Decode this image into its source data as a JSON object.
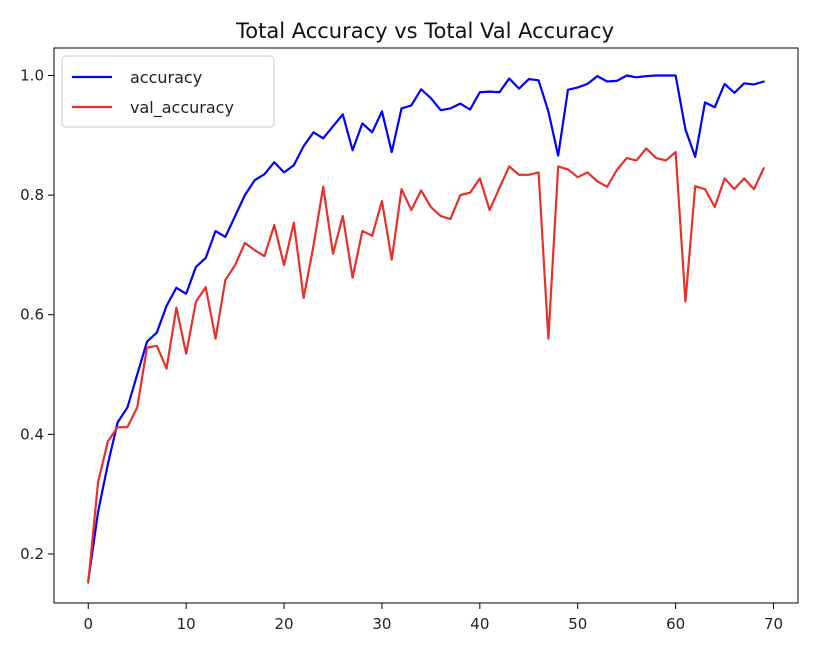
{
  "chart_data": {
    "type": "line",
    "title": "Total Accuracy vs Total Val Accuracy",
    "xlabel": "",
    "ylabel": "",
    "xlim": [
      -3.5,
      72.5
    ],
    "ylim": [
      0.118,
      1.046
    ],
    "xticks": [
      0,
      10,
      20,
      30,
      40,
      50,
      60,
      70
    ],
    "xtick_labels": [
      "0",
      "10",
      "20",
      "30",
      "40",
      "50",
      "60",
      "70"
    ],
    "yticks": [
      0.2,
      0.4,
      0.6,
      0.8,
      1.0
    ],
    "ytick_labels": [
      "0.2",
      "0.4",
      "0.6",
      "0.8",
      "1.0"
    ],
    "grid": false,
    "legend_position": "top-left",
    "x": [
      0,
      1,
      2,
      3,
      4,
      5,
      6,
      7,
      8,
      9,
      10,
      11,
      12,
      13,
      14,
      15,
      16,
      17,
      18,
      19,
      20,
      21,
      22,
      23,
      24,
      25,
      26,
      27,
      28,
      29,
      30,
      31,
      32,
      33,
      34,
      35,
      36,
      37,
      38,
      39,
      40,
      41,
      42,
      43,
      44,
      45,
      46,
      47,
      48,
      49,
      50,
      51,
      52,
      53,
      54,
      55,
      56,
      57,
      58,
      59,
      60,
      61,
      62,
      63,
      64,
      65,
      66,
      67,
      68,
      69
    ],
    "series": [
      {
        "name": "accuracy",
        "color": "#0000ff",
        "values": [
          0.155,
          0.27,
          0.35,
          0.42,
          0.445,
          0.5,
          0.555,
          0.57,
          0.615,
          0.645,
          0.635,
          0.68,
          0.695,
          0.74,
          0.73,
          0.765,
          0.8,
          0.825,
          0.835,
          0.855,
          0.838,
          0.85,
          0.882,
          0.905,
          0.895,
          0.915,
          0.935,
          0.875,
          0.92,
          0.905,
          0.94,
          0.872,
          0.945,
          0.95,
          0.977,
          0.962,
          0.942,
          0.945,
          0.953,
          0.943,
          0.972,
          0.973,
          0.972,
          0.995,
          0.978,
          0.994,
          0.992,
          0.94,
          0.866,
          0.976,
          0.98,
          0.986,
          0.999,
          0.99,
          0.991,
          1.0,
          0.997,
          0.999,
          1.0,
          1.0,
          1.0,
          0.91,
          0.864,
          0.955,
          0.947,
          0.986,
          0.971,
          0.987,
          0.985,
          0.99
        ]
      },
      {
        "name": "val_accuracy",
        "color": "#e8302a",
        "values": [
          0.152,
          0.32,
          0.388,
          0.412,
          0.412,
          0.445,
          0.545,
          0.548,
          0.51,
          0.612,
          0.535,
          0.622,
          0.646,
          0.56,
          0.658,
          0.683,
          0.72,
          0.708,
          0.698,
          0.75,
          0.683,
          0.754,
          0.628,
          0.715,
          0.814,
          0.702,
          0.765,
          0.662,
          0.74,
          0.732,
          0.79,
          0.692,
          0.81,
          0.775,
          0.808,
          0.78,
          0.765,
          0.76,
          0.8,
          0.804,
          0.828,
          0.775,
          0.812,
          0.848,
          0.834,
          0.834,
          0.838,
          0.56,
          0.848,
          0.843,
          0.83,
          0.838,
          0.823,
          0.814,
          0.842,
          0.862,
          0.858,
          0.878,
          0.862,
          0.858,
          0.872,
          0.622,
          0.815,
          0.81,
          0.78,
          0.828,
          0.81,
          0.828,
          0.81,
          0.845
        ]
      }
    ]
  }
}
